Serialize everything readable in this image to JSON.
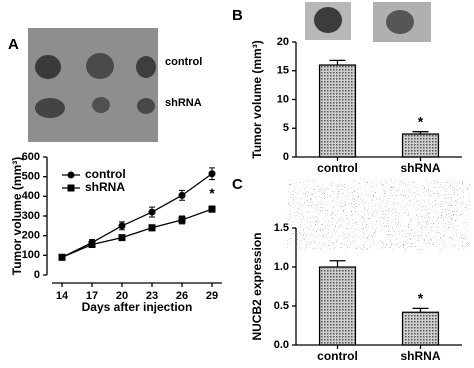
{
  "chart_data": [
    {
      "type": "line",
      "panel": "A",
      "image_labels": [
        "control",
        "shRNA"
      ],
      "xlabel": "Days after injection",
      "ylabel": "Tumor volume (mm³)",
      "x": [
        14,
        17,
        20,
        23,
        26,
        29
      ],
      "xlim": [
        13,
        30
      ],
      "xticks": [
        14,
        17,
        20,
        23,
        26,
        29
      ],
      "ylim": [
        0,
        600
      ],
      "yticks": [
        0,
        100,
        200,
        300,
        400,
        500,
        600
      ],
      "series": [
        {
          "name": "control",
          "color": "#000000",
          "marker": "circle",
          "values": [
            90,
            165,
            250,
            320,
            405,
            515
          ],
          "errors": [
            10,
            15,
            20,
            25,
            25,
            30
          ]
        },
        {
          "name": "shRNA",
          "color": "#000000",
          "marker": "square",
          "values": [
            90,
            155,
            190,
            240,
            280,
            335
          ],
          "errors": [
            8,
            12,
            12,
            15,
            20,
            15
          ]
        }
      ],
      "annotation": "*"
    },
    {
      "type": "bar",
      "panel": "B",
      "ylabel": "Tumor volume (mm³)",
      "categories": [
        "control",
        "shRNA"
      ],
      "values": [
        16,
        4
      ],
      "errors": [
        0.8,
        0.4
      ],
      "color": "#9a9a9a",
      "ylim": [
        0,
        20
      ],
      "yticks": [
        0,
        5,
        10,
        15,
        20
      ],
      "annotation": "*"
    },
    {
      "type": "bar",
      "panel": "C",
      "ylabel": "NUCB2 expression",
      "categories": [
        "control",
        "shRNA"
      ],
      "values": [
        1.0,
        0.42
      ],
      "errors": [
        0.08,
        0.05
      ],
      "color": "#9a9a9a",
      "ylim": [
        0,
        1.5
      ],
      "yticks": [
        {
          "value": 0,
          "label": "0.0"
        },
        0.5,
        {
          "value": 1,
          "label": "1.0"
        },
        1.5
      ],
      "annotation": "*"
    }
  ]
}
